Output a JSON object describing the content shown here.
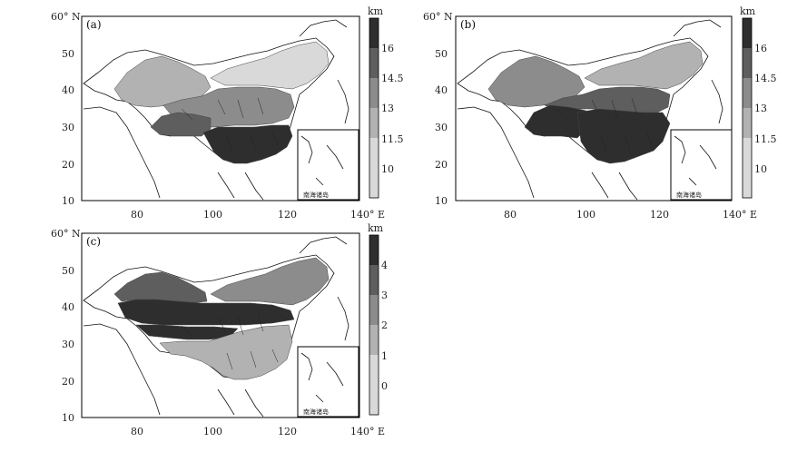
{
  "panels": [
    {
      "id": "a",
      "label": "(a)",
      "colorbar": {
        "unit": "km",
        "ticks": [
          "16",
          "14.5",
          "13",
          "11.5",
          "10"
        ]
      },
      "lat_labels": [
        "60° N",
        "50",
        "40",
        "30",
        "20",
        "10"
      ],
      "lon_labels": [
        "80",
        "100",
        "120",
        "140° E"
      ],
      "inset_label": "南海诸岛",
      "regions": [
        {
          "name": "northwest-basins",
          "level": 1
        },
        {
          "name": "northeast",
          "level": 0
        },
        {
          "name": "north-china-plain",
          "level": 2
        },
        {
          "name": "tibetan-plateau",
          "level": 3
        },
        {
          "name": "south-china",
          "level": 4
        }
      ]
    },
    {
      "id": "b",
      "label": "(b)",
      "colorbar": {
        "unit": "km",
        "ticks": [
          "16",
          "14.5",
          "13",
          "11.5",
          "10"
        ]
      },
      "lat_labels": [
        "60° N",
        "50",
        "40",
        "30",
        "20",
        "10"
      ],
      "lon_labels": [
        "80",
        "100",
        "120",
        "140° E"
      ],
      "inset_label": "南海诸岛",
      "regions": [
        {
          "name": "northwest-basins",
          "level": 2
        },
        {
          "name": "northeast",
          "level": 1
        },
        {
          "name": "north-china-plain",
          "level": 3
        },
        {
          "name": "tibetan-plateau",
          "level": 4
        },
        {
          "name": "south-china",
          "level": 4
        }
      ]
    },
    {
      "id": "c",
      "label": "(c)",
      "colorbar": {
        "unit": "km",
        "ticks": [
          "4",
          "3",
          "2",
          "1",
          "0"
        ]
      },
      "lat_labels": [
        "60° N",
        "50",
        "40",
        "30",
        "20",
        "10"
      ],
      "lon_labels": [
        "80",
        "100",
        "120",
        "140° E"
      ],
      "inset_label": "南海诸岛",
      "regions": [
        {
          "name": "northwest-basins",
          "level": 3
        },
        {
          "name": "northeast",
          "level": 2
        },
        {
          "name": "north-china-plain",
          "level": 4
        },
        {
          "name": "tibetan-plateau",
          "level": 4
        },
        {
          "name": "south-china",
          "level": 1
        }
      ]
    }
  ],
  "colors": {
    "levels": [
      "#d9d9d9",
      "#b2b2b2",
      "#8c8c8c",
      "#5e5e5e",
      "#2e2e2e"
    ],
    "frame": "#000000",
    "background": "#ffffff"
  }
}
